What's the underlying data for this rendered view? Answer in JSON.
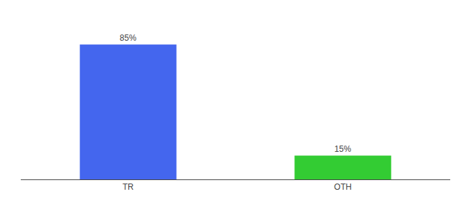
{
  "chart_data": {
    "type": "bar",
    "categories": [
      "TR",
      "OTH"
    ],
    "values": [
      85,
      15
    ],
    "value_labels": [
      "85%",
      "15%"
    ],
    "colors": [
      "#4466ee",
      "#33cc33"
    ],
    "ylim": [
      0,
      100
    ],
    "data_labels": true,
    "tick_labels": "x",
    "grid": false
  }
}
